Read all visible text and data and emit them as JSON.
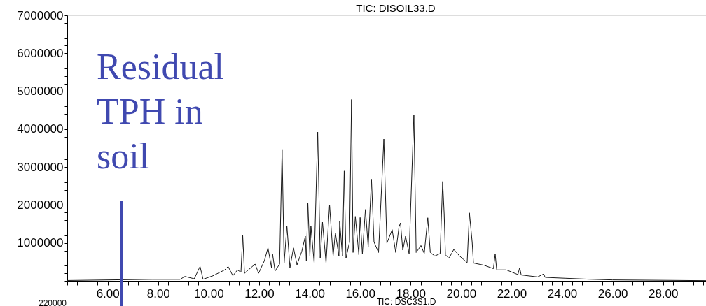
{
  "chart_data": {
    "type": "line",
    "title": "TIC: DISOIL33.D",
    "x": [
      4.4,
      7.76,
      8.87,
      9.06,
      9.43,
      9.66,
      9.78,
      10.17,
      10.63,
      10.77,
      10.96,
      11.14,
      11.28,
      11.35,
      11.42,
      11.84,
      11.98,
      12.21,
      12.35,
      12.49,
      12.53,
      12.63,
      12.81,
      12.91,
      12.99,
      13.1,
      13.22,
      13.36,
      13.5,
      13.69,
      13.83,
      13.87,
      13.93,
      14.01,
      14.05,
      14.18,
      14.32,
      14.42,
      14.51,
      14.65,
      14.79,
      14.93,
      15.02,
      15.16,
      15.19,
      15.3,
      15.37,
      15.44,
      15.58,
      15.66,
      15.72,
      15.81,
      15.95,
      16.0,
      16.09,
      16.21,
      16.32,
      16.45,
      16.55,
      16.73,
      16.94,
      17.06,
      17.27,
      17.41,
      17.54,
      17.6,
      17.69,
      17.8,
      17.94,
      18.13,
      18.22,
      18.41,
      18.54,
      18.68,
      18.78,
      18.96,
      19.17,
      19.27,
      19.33,
      19.38,
      19.52,
      19.71,
      19.94,
      20.24,
      20.33,
      20.44,
      20.49,
      20.91,
      21.28,
      21.35,
      21.41,
      21.79,
      22.25,
      22.32,
      22.38,
      23.03,
      23.27,
      23.33,
      24.15,
      25.07,
      26.0,
      29.7
    ],
    "series": [
      {
        "color": "#1a1a1a",
        "values": [
          10000,
          40000,
          40000,
          116000,
          55000,
          380000,
          42000,
          134000,
          287000,
          380000,
          134000,
          287000,
          230000,
          1197000,
          200000,
          442000,
          200000,
          534000,
          871000,
          350000,
          718000,
          258000,
          442000,
          3468000,
          471000,
          1455000,
          350000,
          871000,
          424000,
          780000,
          1178000,
          534000,
          2055000,
          655000,
          1455000,
          471000,
          3922000,
          595000,
          1547000,
          470000,
          2007000,
          655000,
          1270000,
          655000,
          1578000,
          655000,
          2897000,
          595000,
          1025000,
          4781000,
          748000,
          1700000,
          685000,
          1670000,
          715000,
          1884000,
          900000,
          2681000,
          1025000,
          748000,
          3739000,
          994000,
          1350000,
          748000,
          1424000,
          1528000,
          810000,
          1178000,
          720000,
          4383000,
          748000,
          932000,
          720000,
          1663000,
          748000,
          655000,
          720000,
          2620000,
          1760000,
          690000,
          595000,
          828000,
          655000,
          482000,
          1792000,
          1013000,
          470000,
          412000,
          322000,
          705000,
          290000,
          290000,
          166000,
          350000,
          155000,
          104000,
          180000,
          92000,
          68000,
          43000,
          25000,
          6000
        ]
      }
    ],
    "xlim": [
      4.4,
      29.7
    ],
    "ylim": [
      0,
      7000000
    ],
    "xticks": [
      {
        "value": 4.4,
        "label": null
      },
      {
        "value": 4.8,
        "label": null
      },
      {
        "value": 5.2,
        "label": null
      },
      {
        "value": 5.6,
        "label": null
      },
      {
        "value": 6,
        "label": "6.00"
      },
      {
        "value": 6.4,
        "label": null
      },
      {
        "value": 6.8,
        "label": null
      },
      {
        "value": 7.2,
        "label": null
      },
      {
        "value": 7.6,
        "label": null
      },
      {
        "value": 8,
        "label": "8.00"
      },
      {
        "value": 8.4,
        "label": null
      },
      {
        "value": 8.8,
        "label": null
      },
      {
        "value": 9.2,
        "label": null
      },
      {
        "value": 9.6,
        "label": null
      },
      {
        "value": 10,
        "label": "10.00"
      },
      {
        "value": 10.4,
        "label": null
      },
      {
        "value": 10.8,
        "label": null
      },
      {
        "value": 11.2,
        "label": null
      },
      {
        "value": 11.6,
        "label": null
      },
      {
        "value": 12,
        "label": "12.00"
      },
      {
        "value": 12.4,
        "label": null
      },
      {
        "value": 12.8,
        "label": null
      },
      {
        "value": 13.2,
        "label": null
      },
      {
        "value": 13.6,
        "label": null
      },
      {
        "value": 14,
        "label": "14.00"
      },
      {
        "value": 14.4,
        "label": null
      },
      {
        "value": 14.8,
        "label": null
      },
      {
        "value": 15.2,
        "label": null
      },
      {
        "value": 15.6,
        "label": null
      },
      {
        "value": 16,
        "label": "16.00"
      },
      {
        "value": 16.4,
        "label": null
      },
      {
        "value": 16.8,
        "label": null
      },
      {
        "value": 17.2,
        "label": null
      },
      {
        "value": 17.6,
        "label": null
      },
      {
        "value": 18,
        "label": "18.00"
      },
      {
        "value": 18.4,
        "label": null
      },
      {
        "value": 18.8,
        "label": null
      },
      {
        "value": 19.2,
        "label": null
      },
      {
        "value": 19.6,
        "label": null
      },
      {
        "value": 20,
        "label": "20.00"
      },
      {
        "value": 20.4,
        "label": null
      },
      {
        "value": 20.8,
        "label": null
      },
      {
        "value": 21.2,
        "label": null
      },
      {
        "value": 21.6,
        "label": null
      },
      {
        "value": 22,
        "label": "22.00"
      },
      {
        "value": 22.4,
        "label": null
      },
      {
        "value": 22.8,
        "label": null
      },
      {
        "value": 23.2,
        "label": null
      },
      {
        "value": 23.6,
        "label": null
      },
      {
        "value": 24,
        "label": "24.00"
      },
      {
        "value": 24.4,
        "label": null
      },
      {
        "value": 24.8,
        "label": null
      },
      {
        "value": 25.2,
        "label": null
      },
      {
        "value": 25.6,
        "label": null
      },
      {
        "value": 26,
        "label": "26.00"
      },
      {
        "value": 26.4,
        "label": null
      },
      {
        "value": 26.8,
        "label": null
      },
      {
        "value": 27.2,
        "label": null
      },
      {
        "value": 27.6,
        "label": null
      },
      {
        "value": 28,
        "label": "28.00"
      },
      {
        "value": 28.4,
        "label": null
      },
      {
        "value": 28.8,
        "label": null
      },
      {
        "value": 29.2,
        "label": null
      },
      {
        "value": 29.6,
        "label": null
      }
    ],
    "yticks": [
      {
        "value": 0,
        "label": null
      },
      {
        "value": 200000,
        "label": null
      },
      {
        "value": 400000,
        "label": null
      },
      {
        "value": 600000,
        "label": null
      },
      {
        "value": 800000,
        "label": null
      },
      1000000,
      {
        "value": 1200000,
        "label": null
      },
      {
        "value": 1400000,
        "label": null
      },
      {
        "value": 1600000,
        "label": null
      },
      {
        "value": 1800000,
        "label": null
      },
      2000000,
      {
        "value": 2200000,
        "label": null
      },
      {
        "value": 2400000,
        "label": null
      },
      {
        "value": 2600000,
        "label": null
      },
      {
        "value": 2800000,
        "label": null
      },
      3000000,
      {
        "value": 3200000,
        "label": null
      },
      {
        "value": 3400000,
        "label": null
      },
      {
        "value": 3600000,
        "label": null
      },
      {
        "value": 3800000,
        "label": null
      },
      4000000,
      {
        "value": 4200000,
        "label": null
      },
      {
        "value": 4400000,
        "label": null
      },
      {
        "value": 4600000,
        "label": null
      },
      {
        "value": 4800000,
        "label": null
      },
      5000000,
      {
        "value": 5200000,
        "label": null
      },
      {
        "value": 5400000,
        "label": null
      },
      {
        "value": 5600000,
        "label": null
      },
      {
        "value": 5800000,
        "label": null
      },
      6000000,
      {
        "value": 6200000,
        "label": null
      },
      {
        "value": 6400000,
        "label": null
      },
      {
        "value": 6600000,
        "label": null
      },
      {
        "value": 6800000,
        "label": null
      },
      7000000
    ],
    "ref_lines": [
      {
        "axis": "x",
        "value": 6.55,
        "color": "#4049b0"
      }
    ],
    "annotations": [
      "Residual\nTPH in\nsoil",
      "TIC: DSC3S1.D",
      "220000"
    ],
    "grid": false
  }
}
